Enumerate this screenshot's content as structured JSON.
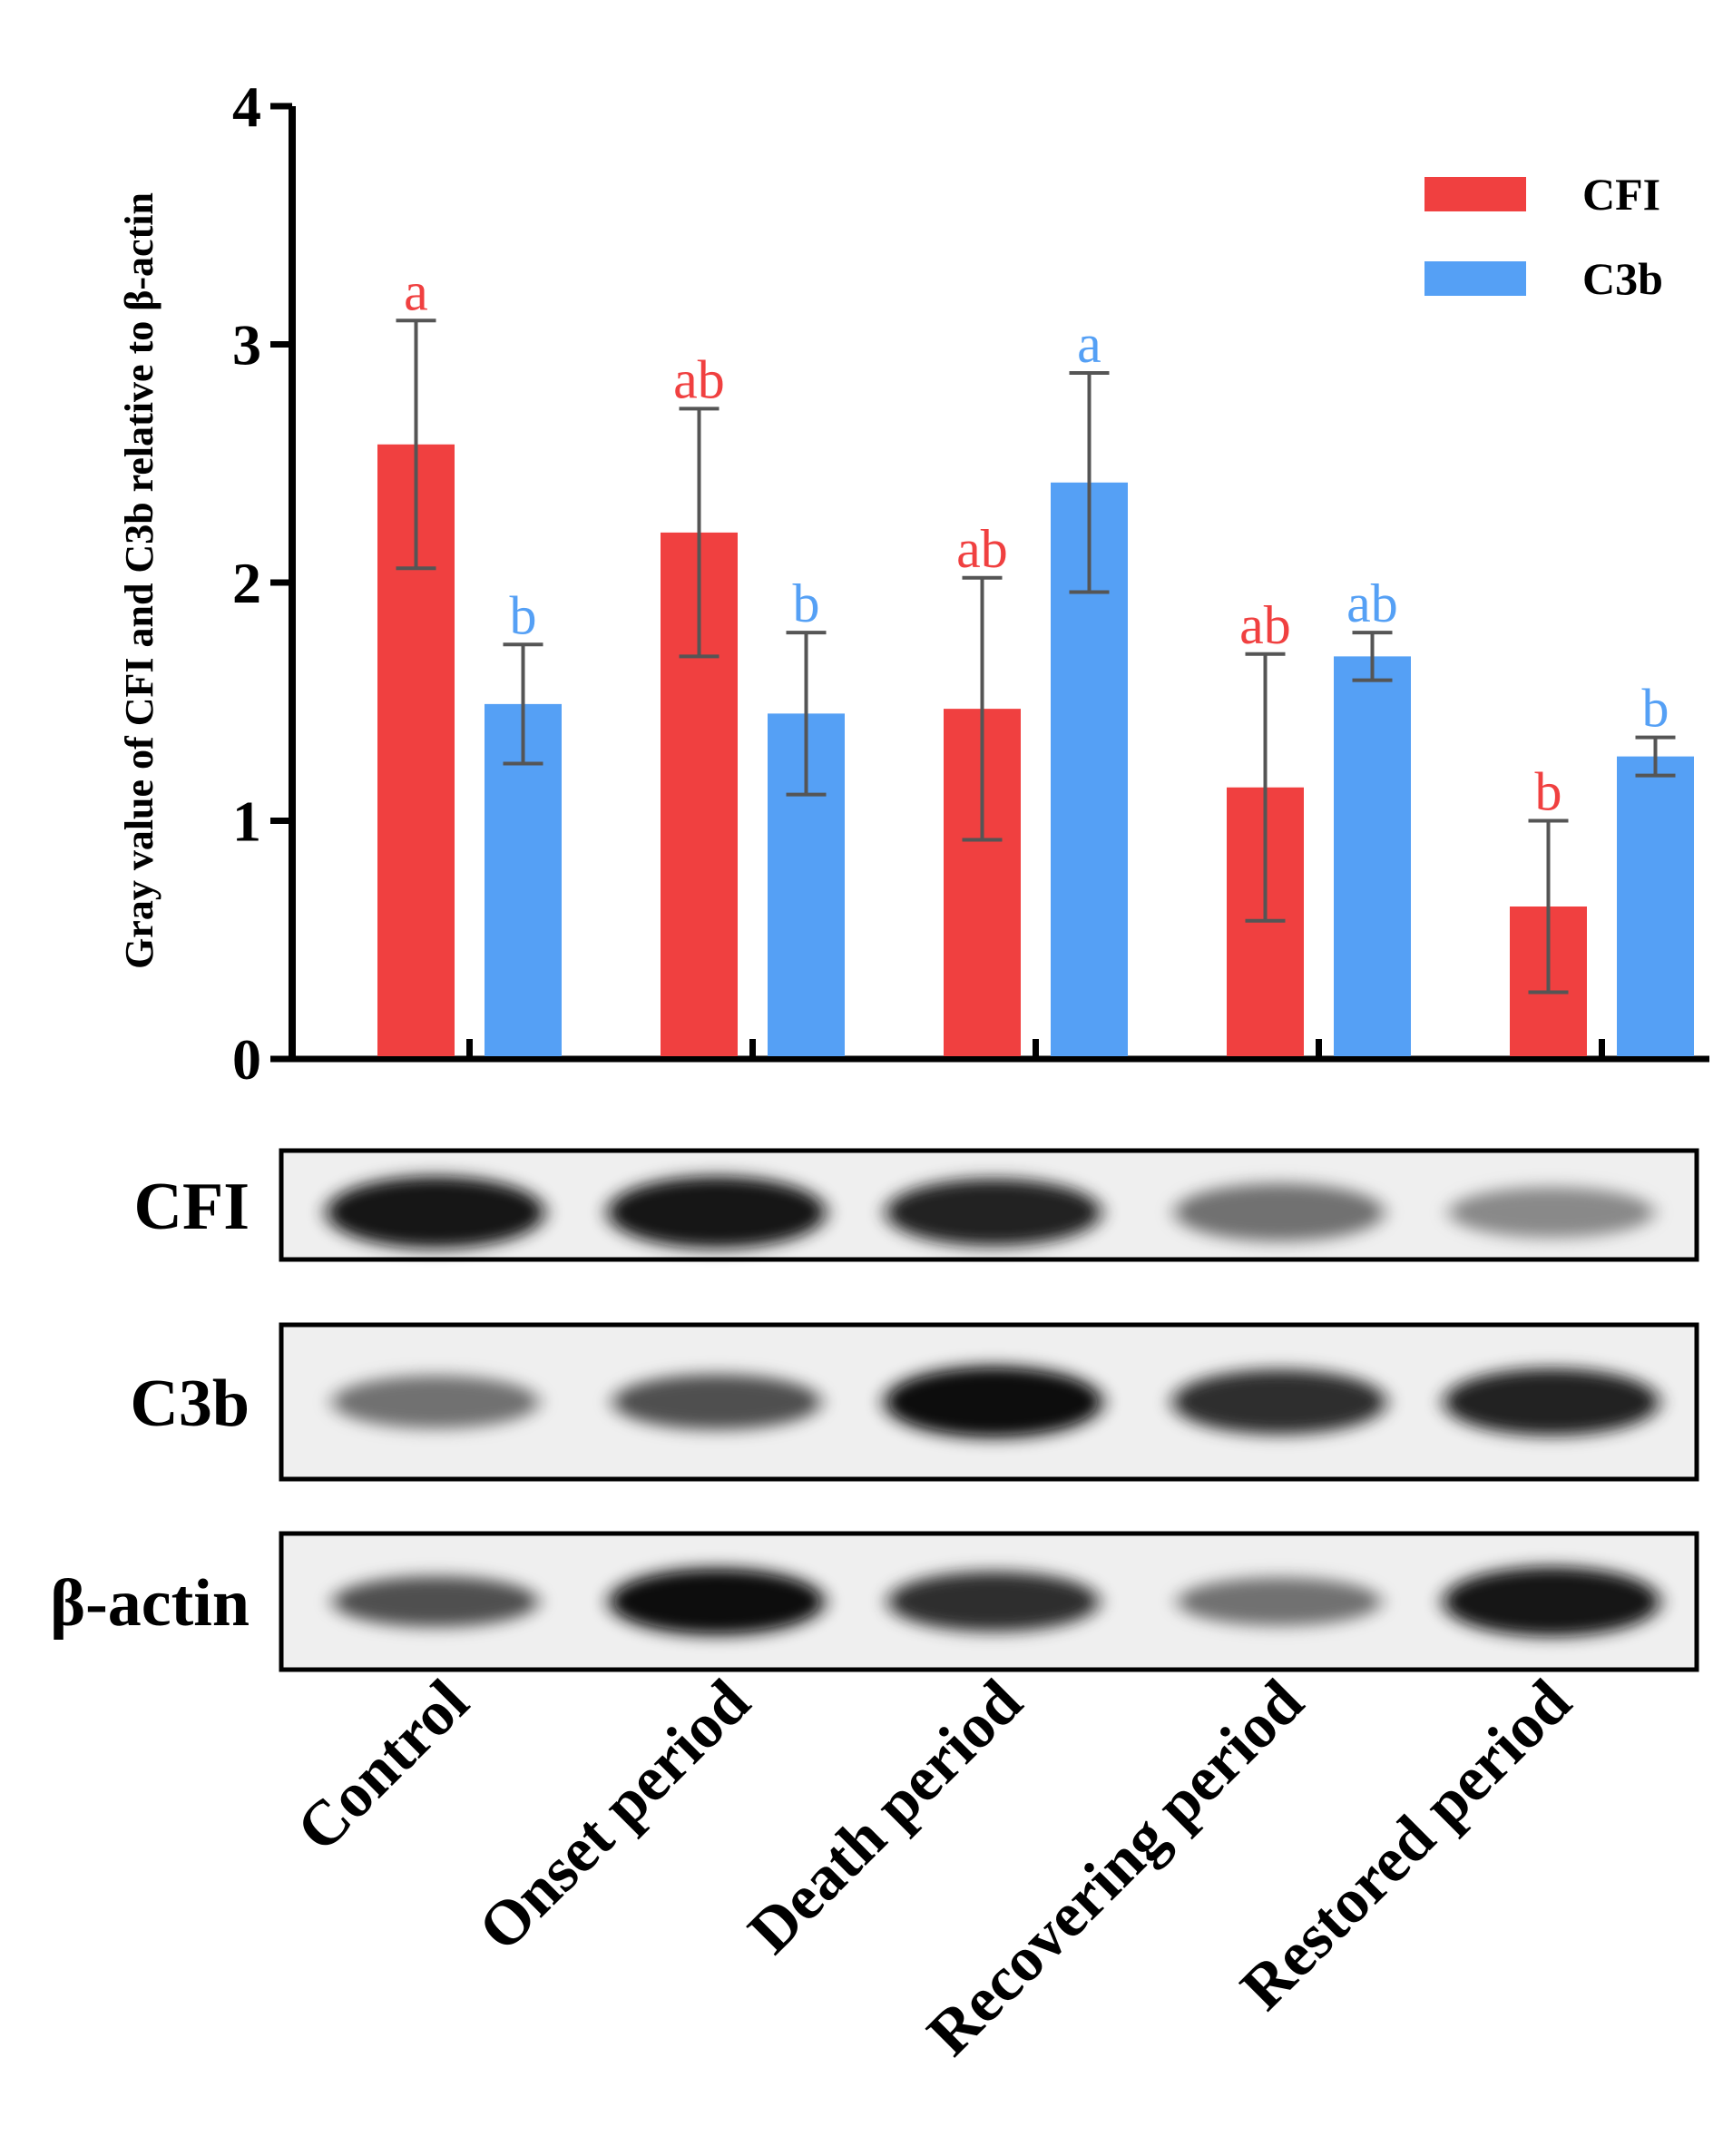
{
  "chart_data": {
    "type": "bar",
    "ylabel": "Gray value of CFI and C3b relative to β-actin",
    "xlabel": "",
    "ylim": [
      0,
      4
    ],
    "yticks": [
      "0",
      "1",
      "2",
      "3",
      "4"
    ],
    "categories": [
      "Control",
      "Onset period",
      "Death period",
      "Recovering period",
      "Restored period"
    ],
    "legend_position": "top-right",
    "series": [
      {
        "name": "CFI",
        "color": "#f04040",
        "values": [
          2.58,
          2.21,
          1.47,
          1.14,
          0.64
        ],
        "errors": [
          0.52,
          0.52,
          0.55,
          0.56,
          0.36
        ],
        "letters": [
          "a",
          "ab",
          "ab",
          "ab",
          "b"
        ]
      },
      {
        "name": "C3b",
        "color": "#55a0f5",
        "values": [
          1.49,
          1.45,
          2.42,
          1.69,
          1.27
        ],
        "errors": [
          0.25,
          0.34,
          0.46,
          0.1,
          0.08
        ],
        "letters": [
          "b",
          "b",
          "a",
          "ab",
          "b"
        ]
      }
    ],
    "blots": [
      {
        "label": "CFI",
        "intensity": [
          0.95,
          0.95,
          0.9,
          0.55,
          0.45
        ],
        "thickness": [
          1.0,
          1.0,
          0.9,
          0.7,
          0.55
        ]
      },
      {
        "label": "C3b",
        "intensity": [
          0.55,
          0.7,
          1.0,
          0.85,
          0.9
        ],
        "thickness": [
          0.6,
          0.65,
          1.0,
          0.85,
          0.9
        ]
      },
      {
        "label": "β-actin",
        "intensity": [
          0.7,
          1.0,
          0.85,
          0.55,
          0.95
        ],
        "thickness": [
          0.55,
          0.9,
          0.75,
          0.5,
          0.95
        ]
      }
    ]
  }
}
